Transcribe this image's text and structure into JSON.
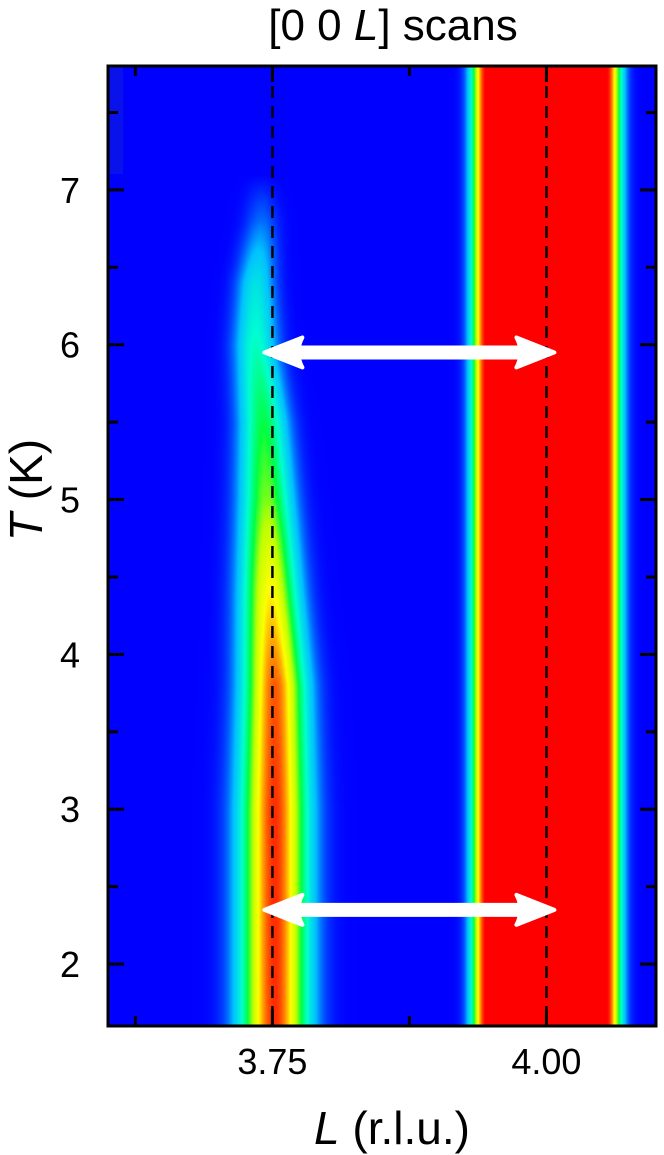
{
  "chart_data": {
    "type": "heatmap",
    "title": {
      "prefix": "[0 0 ",
      "italic": "L",
      "suffix": "] scans"
    },
    "xlabel": {
      "italic": "L",
      "rest": " (r.l.u.)"
    },
    "ylabel": {
      "italic": "T",
      "rest": " (K)"
    },
    "xlim": [
      3.6,
      4.1
    ],
    "ylim": [
      1.6,
      7.8
    ],
    "xticks_major": [
      3.75,
      4.0
    ],
    "xtick_labels": [
      "3.75",
      "4.00"
    ],
    "xticks_minor": [
      3.625,
      3.875,
      4.125
    ],
    "yticks_major": [
      2,
      3,
      4,
      5,
      6,
      7
    ],
    "ytick_labels": [
      "2",
      "3",
      "4",
      "5",
      "6",
      "7"
    ],
    "yticks_minor": [
      2.5,
      3.5,
      4.5,
      5.5,
      6.5,
      7.5
    ],
    "colormap": [
      "#0000ff",
      "#00c0ff",
      "#00ffd0",
      "#00ff40",
      "#c0ff00",
      "#ffff00",
      "#ff8000",
      "#ff0000"
    ],
    "background_color": "#0a12ec",
    "strong_peak": {
      "center": 4.0,
      "flat_top_halfwidth": 0.055,
      "edge_width": 0.018,
      "intensity": 1.0
    },
    "weak_peak_profile": [
      {
        "T": 1.6,
        "center": 3.752,
        "width": 0.03,
        "intensity": 0.95
      },
      {
        "T": 3.0,
        "center": 3.752,
        "width": 0.03,
        "intensity": 0.95
      },
      {
        "T": 3.8,
        "center": 3.752,
        "width": 0.028,
        "intensity": 0.9
      },
      {
        "T": 4.4,
        "center": 3.748,
        "width": 0.026,
        "intensity": 0.72
      },
      {
        "T": 5.0,
        "center": 3.745,
        "width": 0.024,
        "intensity": 0.52
      },
      {
        "T": 5.5,
        "center": 3.742,
        "width": 0.022,
        "intensity": 0.42
      },
      {
        "T": 6.0,
        "center": 3.735,
        "width": 0.02,
        "intensity": 0.3
      },
      {
        "T": 6.4,
        "center": 3.735,
        "width": 0.018,
        "intensity": 0.22
      },
      {
        "T": 6.8,
        "center": 3.74,
        "width": 0.016,
        "intensity": 0.08
      },
      {
        "T": 7.1,
        "center": 3.74,
        "width": 0.014,
        "intensity": 0.0
      }
    ],
    "reference_lines": [
      3.75,
      4.0
    ],
    "arrows": [
      {
        "T": 5.95,
        "x_from": 3.75,
        "x_to": 4.0,
        "style": "double-headed"
      },
      {
        "T": 2.35,
        "x_from": 3.75,
        "x_to": 4.0,
        "style": "double-headed"
      }
    ],
    "grid": false,
    "legend": "none"
  }
}
